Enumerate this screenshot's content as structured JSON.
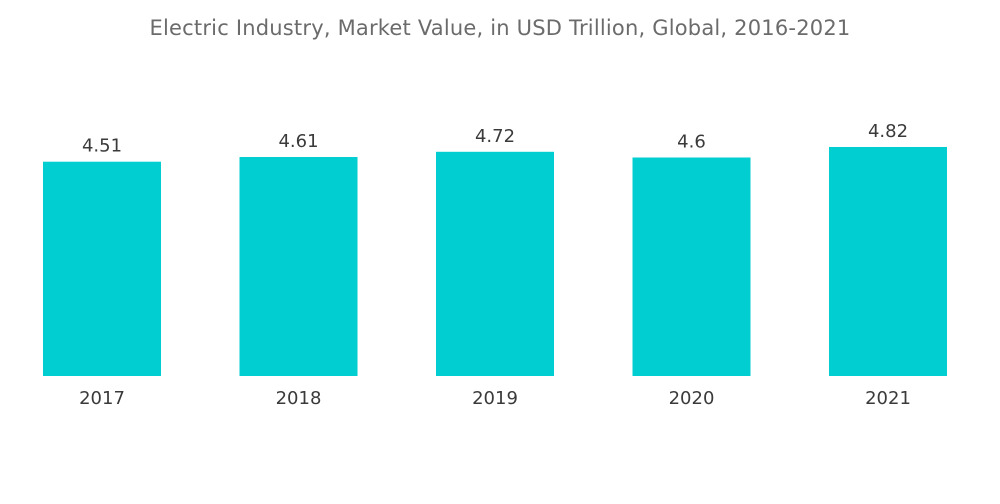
{
  "chart_data": {
    "type": "bar",
    "title": "Electric Industry, Market Value, in USD Trillion, Global, 2016-2021",
    "categories": [
      "2017",
      "2018",
      "2019",
      "2020",
      "2021"
    ],
    "values": [
      4.51,
      4.61,
      4.72,
      4.6,
      4.82
    ],
    "value_labels": [
      "4.51",
      "4.61",
      "4.72",
      "4.6",
      "4.82"
    ],
    "xlabel": "",
    "ylabel": "",
    "ylim": [
      0,
      4.82
    ],
    "grid": false,
    "legend": "none",
    "bar_color": "#00CED1"
  }
}
